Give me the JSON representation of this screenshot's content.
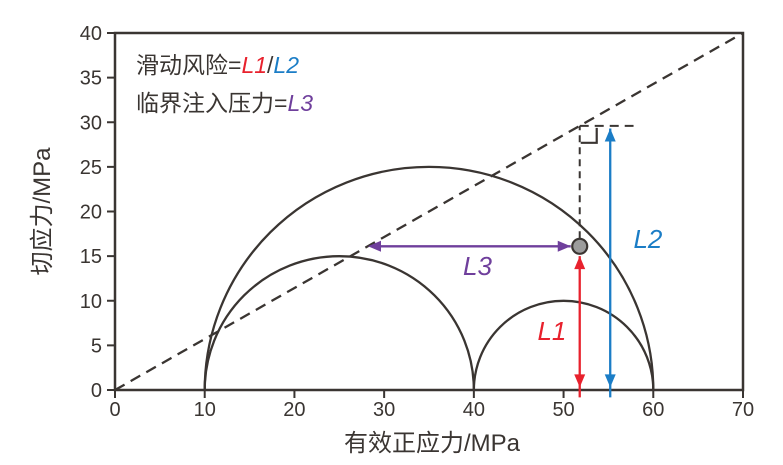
{
  "colors": {
    "axis": "#3a3532",
    "red": "#e8212d",
    "blue": "#1b7dc6",
    "purple": "#6f3f9c",
    "point_fill": "#9c9c9c",
    "background": "#ffffff"
  },
  "chart_data": {
    "type": "mohr_circle_stress_diagram",
    "xlabel": "有效正应力/MPa",
    "ylabel": "切应力/MPa",
    "xlim": [
      0,
      70
    ],
    "ylim": [
      0,
      40
    ],
    "xticks": [
      0,
      10,
      20,
      30,
      40,
      50,
      60,
      70
    ],
    "yticks": [
      0,
      5,
      10,
      15,
      20,
      25,
      30,
      35,
      40
    ],
    "grid": false,
    "failure_envelope": {
      "x_from": 0,
      "y_from": 0,
      "x_to": 70,
      "y_to": 40,
      "style": "dashed"
    },
    "principal_stresses": {
      "sigma3": 10,
      "sigma2": 40,
      "sigma1": 60
    },
    "mohr_semicircles": [
      {
        "name": "sigma3-sigma1",
        "x_start": 10,
        "x_end": 60,
        "peak": 25
      },
      {
        "name": "sigma3-sigma2",
        "x_start": 10,
        "x_end": 40,
        "peak": 15
      },
      {
        "name": "sigma2-sigma1",
        "x_start": 40,
        "x_end": 60,
        "peak": 10
      }
    ],
    "stress_point": {
      "x": 51.8,
      "y": 16.1
    },
    "guides": {
      "vertical_dashed": {
        "x": 51.8,
        "y_from": 17.0,
        "y_to": 29.6
      },
      "horizontal_dashed": {
        "y": 29.6,
        "x_from": 51.8,
        "x_to": 57.8
      },
      "right_angle_marker": {
        "x": 51.8,
        "y": 29.6
      }
    },
    "arrows": [
      {
        "id": "L1",
        "label": "L1",
        "color_key": "red",
        "orientation": "vertical",
        "x": 51.8,
        "from": 0.3,
        "to": 15.0,
        "label_pos": {
          "x": 48.7,
          "y": 6.6
        }
      },
      {
        "id": "L2",
        "label": "L2",
        "color_key": "blue",
        "orientation": "vertical",
        "x": 55.2,
        "from": 0.3,
        "to": 29.3,
        "label_pos": {
          "x": 59.4,
          "y": 16.9
        }
      },
      {
        "id": "L3",
        "label": "L3",
        "color_key": "purple",
        "orientation": "horizontal",
        "y": 16.1,
        "from": 28.2,
        "to": 50.8,
        "label_pos": {
          "x": 40.4,
          "y": 13.9
        }
      }
    ],
    "legend_lines": [
      {
        "parts": [
          {
            "text": "滑动风险=",
            "color_key": "axis",
            "italic": false
          },
          {
            "text": "L1",
            "color_key": "red",
            "italic": true
          },
          {
            "text": "/",
            "color_key": "axis",
            "italic": false
          },
          {
            "text": "L2",
            "color_key": "blue",
            "italic": true
          }
        ]
      },
      {
        "parts": [
          {
            "text": "临界注入压力=",
            "color_key": "axis",
            "italic": false
          },
          {
            "text": "L3",
            "color_key": "purple",
            "italic": true
          }
        ]
      }
    ]
  }
}
